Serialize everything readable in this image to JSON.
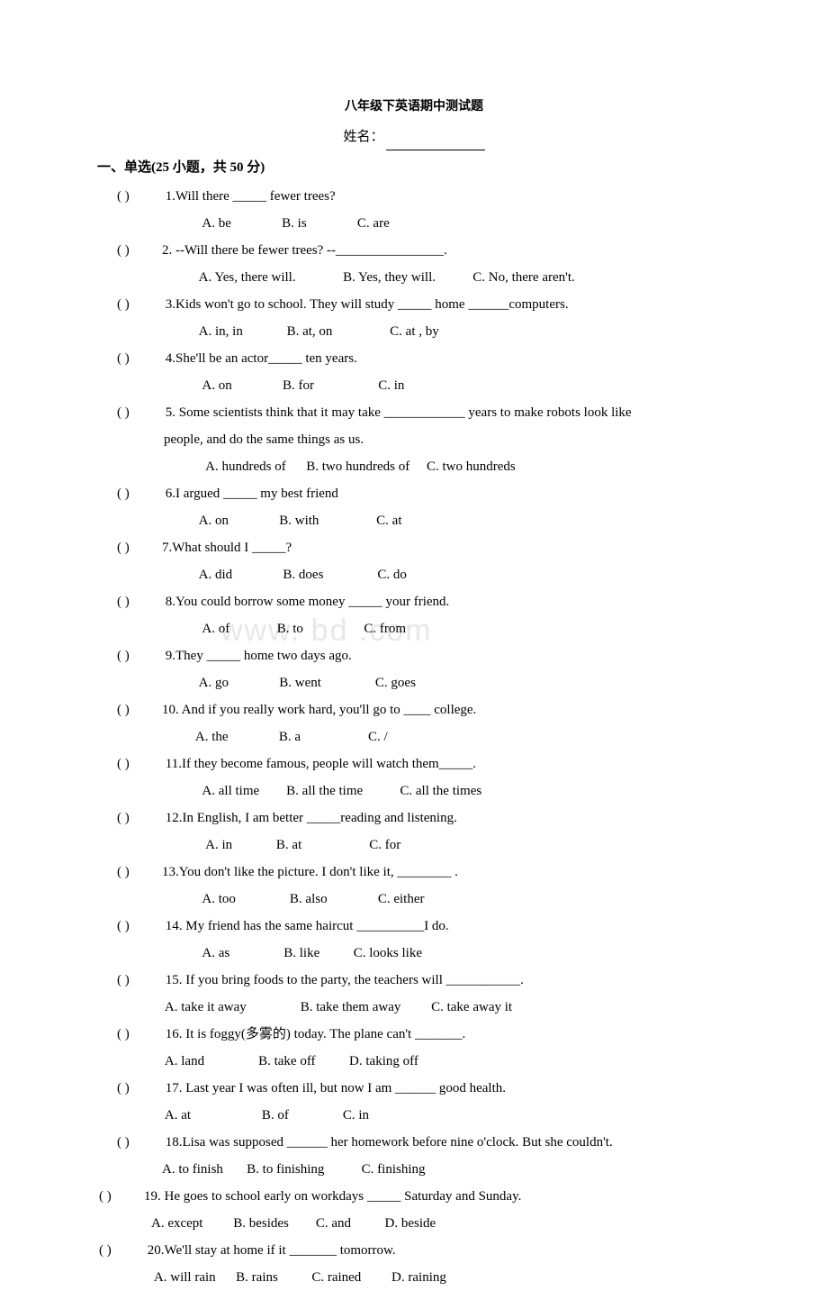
{
  "title": "八年级下英语期中测试题",
  "name_label": "姓名：",
  "section_header": "一、单选(25 小题，共 50 分)",
  "watermark": "www.  bd   .com",
  "questions": [
    {
      "n": "1",
      "paren": "(       )",
      "text": " 1.Will there _____ fewer trees?",
      "opts": "   A. be               B. is               C. are"
    },
    {
      "n": "2",
      "paren": "(       )",
      "text": "2. --Will there be fewer trees?     --________________.",
      "opts": "  A. Yes, there will.              B. Yes, they will.           C. No, there aren't."
    },
    {
      "n": "3",
      "paren": "(       )",
      "text": " 3.Kids won't go to school. They will study _____ home ______computers.",
      "opts": "  A. in, in             B. at, on                 C. at , by"
    },
    {
      "n": "4",
      "paren": "(       )",
      "text": " 4.She'll be an actor_____ ten years.",
      "opts": "   A. on               B. for                   C. in"
    },
    {
      "n": "5",
      "paren": "(       )",
      "text": " 5. Some scientists think that it may take ____________ years to make robots look like",
      "cont": "people, and do the same things as us.",
      "opts": "    A. hundreds of      B. two hundreds of     C. two hundreds"
    },
    {
      "n": "6",
      "paren": "(       )",
      "text": " 6.I argued _____ my best friend",
      "opts": "  A. on               B. with                 C. at"
    },
    {
      "n": "7",
      "paren": "(       )",
      "text": "7.What should I _____?",
      "opts": "  A. did               B. does                C. do"
    },
    {
      "n": "8",
      "paren": "(       )",
      "text": " 8.You could borrow some money _____ your friend.",
      "opts": "   A. of              B. to                  C. from"
    },
    {
      "n": "9",
      "paren": "(       )",
      "text": " 9.They _____ home two days ago.",
      "opts": "  A. go               B. went                C. goes"
    },
    {
      "n": "10",
      "paren": "(       )",
      "text": "10. And if you really work hard, you'll go to ____ college.",
      "opts": " A. the               B. a                    C. /"
    },
    {
      "n": "11",
      "paren": "(       )",
      "text": " 11.If they become famous, people will watch them_____.",
      "opts": "   A. all time        B. all the time           C. all the times"
    },
    {
      "n": "12",
      "paren": "(       )",
      "text": " 12.In English, I am better _____reading and listening.",
      "opts": "    A. in             B. at                    C. for"
    },
    {
      "n": "13",
      "paren": "(       )",
      "text": "13.You don't like the picture. I don't like it, ________ .",
      "opts": "   A. too                B. also               C. either"
    },
    {
      "n": "14",
      "paren": "(       )",
      "text": " 14. My friend has the same haircut __________I do.",
      "opts": "   A. as                B. like          C. looks like"
    },
    {
      "n": "15",
      "paren": "(       )",
      "text": " 15. If you bring foods to the party, the teachers will ___________.",
      "opts": " A. take it away                B. take them away         C. take away it"
    },
    {
      "n": "16",
      "paren": "(       )",
      "text": " 16. It is foggy(多雾的) today. The plane can't  _______.",
      "opts": " A. land                B. take off          D. taking off"
    },
    {
      "n": "17",
      "paren": "(       )",
      "text": " 17. Last year I was often ill, but now I am  ______  good health.",
      "opts": " A. at                     B. of                C. in"
    },
    {
      "n": "18",
      "paren": "(       )",
      "text": " 18.Lisa was supposed  ______  her homework before nine o'clock. But she couldn't.",
      "opts": "A. to finish       B. to finishing           C. finishing"
    },
    {
      "n": "19",
      "paren": "(        )",
      "text": "19. He goes to school early on workdays _____  Saturday and Sunday.",
      "opts": "A. except         B. besides        C. and          D. beside",
      "alt": true
    },
    {
      "n": "20",
      "paren": "(        )",
      "text": " 20.We'll stay at home if it _______ tomorrow.",
      "opts": " A. will rain      B. rains          C. rained         D. raining",
      "alt": true
    }
  ]
}
